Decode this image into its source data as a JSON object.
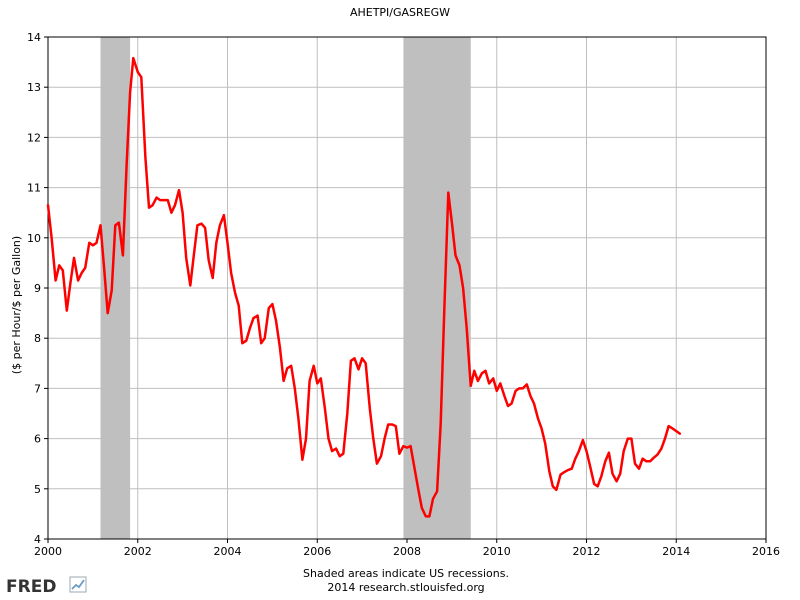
{
  "chart_data": {
    "type": "line",
    "title": "AHETPI/GASREGW",
    "ylabel": "($ per Hour/$ per Gallon)",
    "xlabel": "",
    "xlim": [
      2000,
      2016
    ],
    "ylim": [
      4,
      14
    ],
    "x_ticks": [
      2000,
      2002,
      2004,
      2006,
      2008,
      2010,
      2012,
      2014,
      2016
    ],
    "y_ticks": [
      4,
      5,
      6,
      7,
      8,
      9,
      10,
      11,
      12,
      13,
      14
    ],
    "grid": true,
    "recessions": [
      {
        "start": 2001.17,
        "end": 2001.83
      },
      {
        "start": 2007.92,
        "end": 2009.42
      }
    ],
    "series": [
      {
        "color": "#ff0000",
        "points": [
          [
            2000.0,
            10.65
          ],
          [
            2000.08,
            10.0
          ],
          [
            2000.17,
            9.15
          ],
          [
            2000.25,
            9.45
          ],
          [
            2000.33,
            9.35
          ],
          [
            2000.42,
            8.55
          ],
          [
            2000.5,
            9.1
          ],
          [
            2000.58,
            9.6
          ],
          [
            2000.67,
            9.15
          ],
          [
            2000.75,
            9.3
          ],
          [
            2000.83,
            9.4
          ],
          [
            2000.92,
            9.9
          ],
          [
            2001.0,
            9.85
          ],
          [
            2001.08,
            9.9
          ],
          [
            2001.17,
            10.25
          ],
          [
            2001.25,
            9.4
          ],
          [
            2001.33,
            8.5
          ],
          [
            2001.42,
            8.95
          ],
          [
            2001.5,
            10.25
          ],
          [
            2001.58,
            10.3
          ],
          [
            2001.67,
            9.65
          ],
          [
            2001.75,
            11.4
          ],
          [
            2001.83,
            12.9
          ],
          [
            2001.9,
            13.58
          ],
          [
            2002.0,
            13.3
          ],
          [
            2002.08,
            13.2
          ],
          [
            2002.17,
            11.6
          ],
          [
            2002.25,
            10.6
          ],
          [
            2002.33,
            10.65
          ],
          [
            2002.42,
            10.8
          ],
          [
            2002.5,
            10.75
          ],
          [
            2002.58,
            10.75
          ],
          [
            2002.67,
            10.75
          ],
          [
            2002.75,
            10.5
          ],
          [
            2002.83,
            10.65
          ],
          [
            2002.92,
            10.95
          ],
          [
            2003.0,
            10.5
          ],
          [
            2003.08,
            9.6
          ],
          [
            2003.17,
            9.05
          ],
          [
            2003.25,
            9.65
          ],
          [
            2003.33,
            10.25
          ],
          [
            2003.42,
            10.28
          ],
          [
            2003.5,
            10.2
          ],
          [
            2003.58,
            9.55
          ],
          [
            2003.67,
            9.2
          ],
          [
            2003.75,
            9.9
          ],
          [
            2003.83,
            10.25
          ],
          [
            2003.92,
            10.45
          ],
          [
            2004.0,
            9.9
          ],
          [
            2004.08,
            9.3
          ],
          [
            2004.17,
            8.9
          ],
          [
            2004.25,
            8.65
          ],
          [
            2004.33,
            7.9
          ],
          [
            2004.42,
            7.95
          ],
          [
            2004.5,
            8.2
          ],
          [
            2004.58,
            8.4
          ],
          [
            2004.67,
            8.45
          ],
          [
            2004.75,
            7.9
          ],
          [
            2004.83,
            8.0
          ],
          [
            2004.92,
            8.6
          ],
          [
            2005.0,
            8.68
          ],
          [
            2005.08,
            8.35
          ],
          [
            2005.17,
            7.8
          ],
          [
            2005.25,
            7.15
          ],
          [
            2005.33,
            7.4
          ],
          [
            2005.42,
            7.45
          ],
          [
            2005.5,
            7.0
          ],
          [
            2005.58,
            6.4
          ],
          [
            2005.67,
            5.58
          ],
          [
            2005.75,
            6.0
          ],
          [
            2005.83,
            7.15
          ],
          [
            2005.92,
            7.45
          ],
          [
            2006.0,
            7.1
          ],
          [
            2006.08,
            7.2
          ],
          [
            2006.17,
            6.6
          ],
          [
            2006.25,
            6.0
          ],
          [
            2006.33,
            5.75
          ],
          [
            2006.42,
            5.8
          ],
          [
            2006.5,
            5.65
          ],
          [
            2006.58,
            5.7
          ],
          [
            2006.67,
            6.5
          ],
          [
            2006.75,
            7.55
          ],
          [
            2006.83,
            7.6
          ],
          [
            2006.92,
            7.38
          ],
          [
            2007.0,
            7.6
          ],
          [
            2007.08,
            7.5
          ],
          [
            2007.17,
            6.6
          ],
          [
            2007.25,
            6.0
          ],
          [
            2007.33,
            5.5
          ],
          [
            2007.42,
            5.65
          ],
          [
            2007.5,
            6.0
          ],
          [
            2007.58,
            6.28
          ],
          [
            2007.67,
            6.28
          ],
          [
            2007.75,
            6.25
          ],
          [
            2007.83,
            5.7
          ],
          [
            2007.92,
            5.85
          ],
          [
            2008.0,
            5.82
          ],
          [
            2008.08,
            5.85
          ],
          [
            2008.17,
            5.4
          ],
          [
            2008.25,
            5.0
          ],
          [
            2008.33,
            4.62
          ],
          [
            2008.42,
            4.45
          ],
          [
            2008.5,
            4.45
          ],
          [
            2008.58,
            4.8
          ],
          [
            2008.67,
            4.95
          ],
          [
            2008.75,
            6.3
          ],
          [
            2008.83,
            8.5
          ],
          [
            2008.92,
            10.9
          ],
          [
            2009.0,
            10.3
          ],
          [
            2009.08,
            9.65
          ],
          [
            2009.17,
            9.45
          ],
          [
            2009.25,
            9.0
          ],
          [
            2009.33,
            8.2
          ],
          [
            2009.42,
            7.05
          ],
          [
            2009.5,
            7.35
          ],
          [
            2009.58,
            7.15
          ],
          [
            2009.67,
            7.3
          ],
          [
            2009.75,
            7.35
          ],
          [
            2009.83,
            7.1
          ],
          [
            2009.92,
            7.2
          ],
          [
            2010.0,
            6.95
          ],
          [
            2010.08,
            7.1
          ],
          [
            2010.17,
            6.85
          ],
          [
            2010.25,
            6.65
          ],
          [
            2010.33,
            6.7
          ],
          [
            2010.42,
            6.95
          ],
          [
            2010.5,
            7.0
          ],
          [
            2010.58,
            7.0
          ],
          [
            2010.67,
            7.08
          ],
          [
            2010.75,
            6.85
          ],
          [
            2010.83,
            6.7
          ],
          [
            2010.92,
            6.4
          ],
          [
            2011.0,
            6.2
          ],
          [
            2011.08,
            5.9
          ],
          [
            2011.17,
            5.35
          ],
          [
            2011.25,
            5.05
          ],
          [
            2011.33,
            4.98
          ],
          [
            2011.42,
            5.28
          ],
          [
            2011.5,
            5.33
          ],
          [
            2011.58,
            5.37
          ],
          [
            2011.67,
            5.4
          ],
          [
            2011.75,
            5.6
          ],
          [
            2011.83,
            5.75
          ],
          [
            2011.92,
            5.97
          ],
          [
            2012.0,
            5.75
          ],
          [
            2012.08,
            5.45
          ],
          [
            2012.17,
            5.1
          ],
          [
            2012.25,
            5.05
          ],
          [
            2012.33,
            5.25
          ],
          [
            2012.42,
            5.55
          ],
          [
            2012.5,
            5.72
          ],
          [
            2012.58,
            5.3
          ],
          [
            2012.67,
            5.15
          ],
          [
            2012.75,
            5.3
          ],
          [
            2012.83,
            5.75
          ],
          [
            2012.92,
            6.0
          ],
          [
            2013.0,
            6.0
          ],
          [
            2013.08,
            5.5
          ],
          [
            2013.17,
            5.4
          ],
          [
            2013.25,
            5.6
          ],
          [
            2013.33,
            5.55
          ],
          [
            2013.42,
            5.55
          ],
          [
            2013.5,
            5.62
          ],
          [
            2013.58,
            5.68
          ],
          [
            2013.67,
            5.8
          ],
          [
            2013.75,
            6.0
          ],
          [
            2013.83,
            6.25
          ],
          [
            2013.92,
            6.2
          ],
          [
            2014.0,
            6.15
          ],
          [
            2014.08,
            6.1
          ]
        ]
      }
    ]
  },
  "footer": {
    "line1": "Shaded areas indicate US recessions.",
    "line2": "2014 research.stlouisfed.org"
  },
  "logo": {
    "text": "FRED"
  },
  "colors": {
    "line": "#ff0000",
    "recession": "#bfbfbf",
    "grid": "#bfbfbf",
    "logo_text": "#333333",
    "logo_accent": "#6b9ac4"
  }
}
